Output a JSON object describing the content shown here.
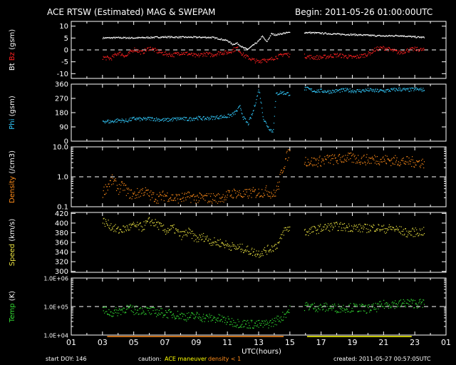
{
  "header": {
    "title": "ACE RTSW (Estimated) MAG & SWEPAM",
    "begin": "Begin: 2011-05-26 01:00:00UTC"
  },
  "footer": {
    "start_doy": "start DOY: 146",
    "caution_label": "caution:",
    "caution_maneuver": "ACE maneuver",
    "caution_density": "density < 1",
    "created": "created: 2011-05-27 00:57:05UTC"
  },
  "colors": {
    "background": "#000000",
    "frame": "#ffffff",
    "bt": "#ffffff",
    "bz": "#ff2020",
    "phi": "#33ccff",
    "density": "#ff8c1a",
    "speed": "#e8e040",
    "temp": "#33dd33",
    "caution_maneuver": "#ffff00",
    "caution_density": "#ff8c1a"
  },
  "chart_data": [
    {
      "type": "scatter",
      "panel": "mag",
      "ylabel_parts": [
        "Bt",
        "Bz",
        "(gsm)"
      ],
      "yticks": [
        "10",
        "5",
        "0",
        "-5",
        "-10"
      ],
      "ylim": [
        -12,
        12
      ],
      "reference_line": 0,
      "series": [
        {
          "name": "Bt",
          "color": "bt",
          "x": [
            3,
            4,
            5,
            6,
            7,
            8,
            9,
            10,
            10.5,
            11,
            11.3,
            11.6,
            11.8,
            12,
            12.3,
            12.6,
            13,
            13.2,
            13.5,
            13.8,
            14,
            14.3,
            14.6,
            15,
            16,
            17,
            18,
            19,
            20,
            21,
            22,
            23,
            23.6
          ],
          "y": [
            5.2,
            5.3,
            5.2,
            5.4,
            5.6,
            5.5,
            5.5,
            5.4,
            4.8,
            4.0,
            2.5,
            3.0,
            2.0,
            1.0,
            0.5,
            2.0,
            4.0,
            6.0,
            3.5,
            7.0,
            6.5,
            6.8,
            7.2,
            7.5,
            7.5,
            7.2,
            6.8,
            6.6,
            6.3,
            6.0,
            6.2,
            5.6,
            5.4
          ]
        },
        {
          "name": "Bz",
          "color": "bz",
          "x": [
            3,
            3.5,
            4,
            4.5,
            5,
            5.5,
            6,
            6.5,
            7,
            7.5,
            8,
            8.5,
            9,
            9.5,
            10,
            10.5,
            11,
            11.3,
            11.6,
            12,
            12.3,
            12.6,
            13,
            13.3,
            13.6,
            14,
            14.3,
            14.6,
            15,
            16,
            16.5,
            17,
            17.5,
            18,
            18.5,
            19,
            19.5,
            20,
            20.5,
            21,
            21.5,
            22,
            22.5,
            23,
            23.6
          ],
          "y": [
            -3.0,
            -3.5,
            -1.0,
            -2.5,
            0.5,
            -1.0,
            1.0,
            -0.5,
            -1.5,
            -2.0,
            -1.0,
            -1.5,
            -2.5,
            -1.5,
            -2.0,
            -1.0,
            -1.0,
            0,
            1.0,
            -2.0,
            -3.0,
            -4.0,
            -5.0,
            -3.5,
            -4.5,
            -3.0,
            -2.5,
            -1.5,
            -2.0,
            -2.5,
            -3.0,
            -3.0,
            -2.5,
            -2.0,
            -2.5,
            -3.0,
            -2.5,
            -1.5,
            0.5,
            1.0,
            0,
            -1.0,
            0,
            0.5,
            0
          ]
        }
      ]
    },
    {
      "type": "scatter",
      "panel": "phi",
      "ylabel_parts": [
        "Phi",
        "(gsm)"
      ],
      "yticks": [
        "360",
        "270",
        "180",
        "90",
        "0"
      ],
      "ylim": [
        0,
        360
      ],
      "series": [
        {
          "name": "Phi",
          "color": "phi",
          "x": [
            3,
            3.5,
            4,
            4.5,
            5,
            5.5,
            6,
            6.5,
            7,
            7.5,
            8,
            8.5,
            9,
            9.5,
            10,
            10.5,
            11,
            11.3,
            11.5,
            11.8,
            12,
            12.3,
            12.6,
            13,
            13.3,
            13.6,
            13.9,
            14.1,
            14.4,
            14.7,
            15,
            16,
            16.5,
            17,
            17.5,
            18,
            18.5,
            19,
            19.5,
            20,
            20.5,
            21,
            21.5,
            22,
            22.5,
            23,
            23.6
          ],
          "y": [
            130,
            125,
            135,
            130,
            145,
            140,
            145,
            140,
            135,
            140,
            145,
            140,
            150,
            145,
            150,
            155,
            160,
            170,
            185,
            220,
            150,
            110,
            180,
            330,
            140,
            90,
            60,
            300,
            310,
            305,
            300,
            335,
            320,
            320,
            315,
            320,
            325,
            320,
            320,
            325,
            320,
            320,
            325,
            330,
            325,
            330,
            325
          ]
        }
      ]
    },
    {
      "type": "scatter",
      "panel": "density",
      "ylabel_parts": [
        "Density",
        "(/cm3)"
      ],
      "yticks": [
        "10.0",
        "1.0",
        "0.1"
      ],
      "yscale": "log",
      "ylim": [
        0.1,
        10
      ],
      "reference_line": 1.0,
      "series": [
        {
          "name": "Density",
          "color": "density",
          "x": [
            3,
            3.3,
            3.6,
            4,
            4.3,
            4.6,
            5,
            5.3,
            5.6,
            6,
            6.5,
            7,
            7.5,
            8,
            8.5,
            9,
            9.5,
            10,
            10.5,
            11,
            11.5,
            12,
            12.5,
            13,
            13.5,
            14,
            14.3,
            14.6,
            15,
            15.5,
            16,
            16.5,
            17,
            17.5,
            18,
            18.5,
            19,
            19.5,
            20,
            20.5,
            21,
            21.5,
            22,
            22.5,
            23,
            23.6
          ],
          "y": [
            0.3,
            0.5,
            0.8,
            0.4,
            0.5,
            0.3,
            0.25,
            0.3,
            0.35,
            0.25,
            0.2,
            0.25,
            0.2,
            0.2,
            0.22,
            0.2,
            0.2,
            0.2,
            0.2,
            0.25,
            0.3,
            0.25,
            0.3,
            0.3,
            0.35,
            0.25,
            0.6,
            2.5,
            7.5,
            5.0,
            3.5,
            3.2,
            3.5,
            4.0,
            3.8,
            4.5,
            4.2,
            4.0,
            3.8,
            4.0,
            3.8,
            3.6,
            3.5,
            3.3,
            3.2,
            3.0
          ]
        }
      ]
    },
    {
      "type": "scatter",
      "panel": "speed",
      "ylabel_parts": [
        "Speed",
        "(km/s)"
      ],
      "yticks": [
        "420",
        "400",
        "380",
        "360",
        "340",
        "320",
        "300"
      ],
      "ylim": [
        298,
        422
      ],
      "series": [
        {
          "name": "Speed",
          "color": "speed",
          "x": [
            3,
            3.5,
            4,
            4.5,
            5,
            5.5,
            6,
            6.5,
            7,
            7.5,
            8,
            8.5,
            9,
            9.5,
            10,
            10.5,
            11,
            11.5,
            12,
            12.5,
            13,
            13.5,
            14,
            14.3,
            14.6,
            15,
            16,
            16.5,
            17,
            17.5,
            18,
            18.5,
            19,
            19.5,
            20,
            20.5,
            21,
            21.5,
            22,
            22.5,
            23,
            23.6
          ],
          "y": [
            405,
            395,
            385,
            390,
            395,
            392,
            405,
            398,
            385,
            390,
            375,
            382,
            368,
            372,
            362,
            360,
            355,
            350,
            348,
            342,
            338,
            345,
            352,
            360,
            385,
            392,
            382,
            386,
            390,
            393,
            394,
            392,
            392,
            390,
            390,
            392,
            388,
            390,
            386,
            380,
            382,
            383
          ]
        }
      ]
    },
    {
      "type": "scatter",
      "panel": "temp",
      "ylabel_parts": [
        "Temp",
        "(K)"
      ],
      "yticks": [
        "1.0E+06",
        "1.0E+05",
        "1.0E+04"
      ],
      "yscale": "log",
      "ylim": [
        10000,
        1000000
      ],
      "reference_line": 100000,
      "series": [
        {
          "name": "Temp",
          "color": "temp",
          "x": [
            3,
            3.5,
            4,
            4.5,
            5,
            5.5,
            6,
            6.5,
            7,
            7.5,
            8,
            8.5,
            9,
            9.5,
            10,
            10.5,
            11,
            11.5,
            12,
            12.5,
            13,
            13.5,
            14,
            14.5,
            15,
            16,
            16.5,
            17,
            17.5,
            18,
            18.5,
            19,
            19.5,
            20,
            20.5,
            21,
            21.5,
            22,
            22.5,
            23,
            23.6
          ],
          "y": [
            80000,
            60000,
            70000,
            90000,
            75000,
            80000,
            70000,
            65000,
            60000,
            55000,
            50000,
            45000,
            48000,
            42000,
            40000,
            38000,
            32000,
            28000,
            26000,
            25000,
            24000,
            25000,
            30000,
            45000,
            80000,
            110000,
            100000,
            95000,
            98000,
            90000,
            92000,
            95000,
            90000,
            85000,
            95000,
            120000,
            130000,
            125000,
            140000,
            130000,
            135000
          ]
        }
      ]
    }
  ],
  "x_axis": {
    "label": "UTC(hours)",
    "range": [
      1,
      25
    ],
    "ticks": [
      "01",
      "03",
      "05",
      "07",
      "09",
      "11",
      "13",
      "15",
      "17",
      "19",
      "21",
      "23",
      "01"
    ]
  },
  "gap_hours": [
    15.0,
    15.9
  ],
  "caution_bars": [
    {
      "kind": "density",
      "from": 3.3,
      "to": 14.6
    },
    {
      "kind": "maneuver",
      "from": 16.1,
      "to": 22.8
    }
  ]
}
